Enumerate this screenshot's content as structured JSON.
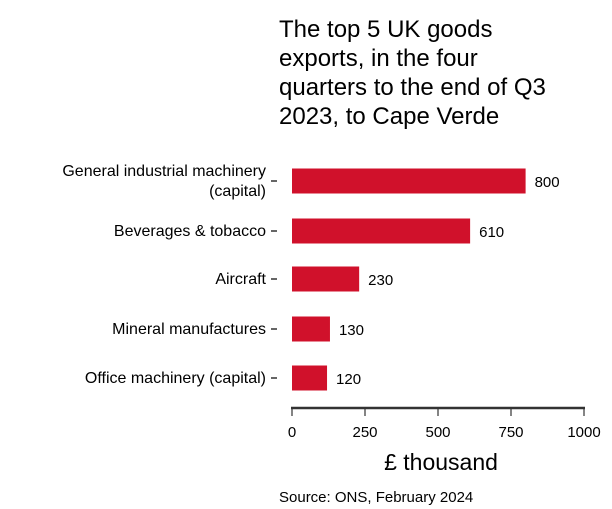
{
  "chart_data": {
    "type": "bar",
    "orientation": "horizontal",
    "title_lines": [
      "The top 5 UK goods",
      "exports, in the four",
      "quarters to the end of Q3",
      "2023, to Cape Verde"
    ],
    "categories": [
      [
        "General industrial machinery",
        "(capital)"
      ],
      [
        "Beverages & tobacco"
      ],
      [
        "Aircraft"
      ],
      [
        "Mineral manufactures"
      ],
      [
        "Office machinery (capital)"
      ]
    ],
    "values": [
      800,
      610,
      230,
      130,
      120
    ],
    "value_labels": [
      "800",
      "610",
      "230",
      "130",
      "120"
    ],
    "xlabel": "£ thousand",
    "ylabel": "",
    "xlim": [
      0,
      1000
    ],
    "xticks": [
      0,
      250,
      500,
      750,
      1000
    ],
    "xtick_labels": [
      "0",
      "250",
      "500",
      "750",
      "1000"
    ],
    "source": "Source: ONS, February 2024",
    "bar_color": "#d0112b",
    "grid": false,
    "legend": "none"
  }
}
